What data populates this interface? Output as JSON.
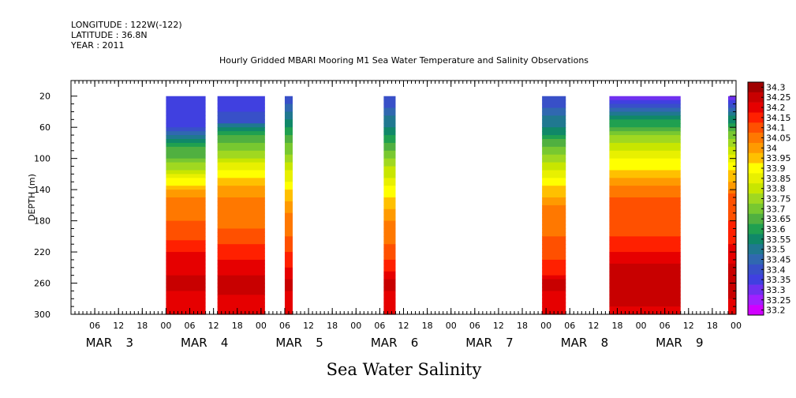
{
  "header": {
    "longitude": "LONGITUDE : 122W(-122)",
    "latitude": "LATITUDE : 36.8N",
    "year": "YEAR : 2011"
  },
  "footer_title": "Sea Water Salinity",
  "chart_data": {
    "type": "heatmap",
    "title": "Hourly Gridded MBARI Mooring M1 Sea Water Temperature and Salinity Observations",
    "ylabel": "DEPTH (m)",
    "xlabel": "",
    "ylim": [
      300,
      0
    ],
    "y_ticks": [
      20,
      60,
      100,
      140,
      180,
      220,
      260,
      300
    ],
    "x_range_hours": [
      0,
      168
    ],
    "x_ticks": [
      {
        "h": 6,
        "label": "06"
      },
      {
        "h": 12,
        "label": "12"
      },
      {
        "h": 18,
        "label": "18"
      },
      {
        "h": 24,
        "label": "00"
      },
      {
        "h": 30,
        "label": "06"
      },
      {
        "h": 36,
        "label": "12"
      },
      {
        "h": 42,
        "label": "18"
      },
      {
        "h": 48,
        "label": "00"
      },
      {
        "h": 54,
        "label": "06"
      },
      {
        "h": 60,
        "label": "12"
      },
      {
        "h": 66,
        "label": "18"
      },
      {
        "h": 72,
        "label": "00"
      },
      {
        "h": 78,
        "label": "06"
      },
      {
        "h": 84,
        "label": "12"
      },
      {
        "h": 90,
        "label": "18"
      },
      {
        "h": 96,
        "label": "00"
      },
      {
        "h": 102,
        "label": "06"
      },
      {
        "h": 108,
        "label": "12"
      },
      {
        "h": 114,
        "label": "18"
      },
      {
        "h": 120,
        "label": "00"
      },
      {
        "h": 126,
        "label": "06"
      },
      {
        "h": 132,
        "label": "12"
      },
      {
        "h": 138,
        "label": "18"
      },
      {
        "h": 144,
        "label": "00"
      },
      {
        "h": 150,
        "label": "06"
      },
      {
        "h": 156,
        "label": "12"
      },
      {
        "h": 162,
        "label": "18"
      },
      {
        "h": 168,
        "label": "00"
      }
    ],
    "day_labels": [
      {
        "h": 12,
        "month": "MAR",
        "day": "3"
      },
      {
        "h": 36,
        "month": "MAR",
        "day": "4"
      },
      {
        "h": 60,
        "month": "MAR",
        "day": "5"
      },
      {
        "h": 84,
        "month": "MAR",
        "day": "6"
      },
      {
        "h": 108,
        "month": "MAR",
        "day": "7"
      },
      {
        "h": 132,
        "month": "MAR",
        "day": "8"
      },
      {
        "h": 156,
        "month": "MAR",
        "day": "9"
      }
    ],
    "colorbar": {
      "levels": [
        34.3,
        34.25,
        34.2,
        34.15,
        34.1,
        34.05,
        34,
        33.95,
        33.9,
        33.85,
        33.8,
        33.75,
        33.7,
        33.65,
        33.6,
        33.55,
        33.5,
        33.45,
        33.4,
        33.35,
        33.3,
        33.25,
        33.2
      ],
      "labels": [
        "34.3",
        "34.25",
        "34.2",
        "34.15",
        "34.1",
        "34.05",
        "34",
        "33.95",
        "33.9",
        "33.85",
        "33.8",
        "33.75",
        "33.7",
        "33.65",
        "33.6",
        "33.55",
        "33.5",
        "33.45",
        "33.4",
        "33.35",
        "33.3",
        "33.25",
        "33.2"
      ],
      "colors": [
        "#a00000",
        "#c80000",
        "#e60000",
        "#ff2000",
        "#ff5000",
        "#ff7800",
        "#ff9a00",
        "#ffc000",
        "#ffff00",
        "#e8f000",
        "#c8e600",
        "#a0d820",
        "#78c830",
        "#50b040",
        "#20a050",
        "#108868",
        "#207890",
        "#3068b0",
        "#3850c8",
        "#4040e0",
        "#7030f0",
        "#a020ff",
        "#d000ff"
      ]
    },
    "data_columns": [
      {
        "start_h": 24,
        "end_h": 34,
        "profile": [
          [
            20,
            33.35
          ],
          [
            60,
            33.4
          ],
          [
            80,
            33.62
          ],
          [
            100,
            33.7
          ],
          [
            120,
            33.85
          ],
          [
            140,
            34.0
          ],
          [
            160,
            34.08
          ],
          [
            180,
            34.1
          ],
          [
            200,
            34.14
          ],
          [
            220,
            34.2
          ],
          [
            240,
            34.22
          ],
          [
            260,
            34.27
          ],
          [
            280,
            34.22
          ],
          [
            300,
            34.2
          ]
        ]
      },
      {
        "start_h": 37,
        "end_h": 49,
        "profile": [
          [
            20,
            33.35
          ],
          [
            50,
            33.42
          ],
          [
            70,
            33.65
          ],
          [
            90,
            33.75
          ],
          [
            110,
            33.88
          ],
          [
            130,
            33.98
          ],
          [
            150,
            34.05
          ],
          [
            180,
            34.08
          ],
          [
            200,
            34.13
          ],
          [
            220,
            34.18
          ],
          [
            240,
            34.23
          ],
          [
            260,
            34.28
          ],
          [
            280,
            34.24
          ],
          [
            300,
            34.2
          ]
        ]
      },
      {
        "start_h": 54,
        "end_h": 56,
        "profile": [
          [
            20,
            33.4
          ],
          [
            60,
            33.6
          ],
          [
            100,
            33.78
          ],
          [
            140,
            33.95
          ],
          [
            170,
            34.05
          ],
          [
            200,
            34.1
          ],
          [
            220,
            34.15
          ],
          [
            240,
            34.2
          ],
          [
            260,
            34.27
          ],
          [
            280,
            34.22
          ],
          [
            300,
            34.2
          ]
        ]
      },
      {
        "start_h": 79,
        "end_h": 82,
        "profile": [
          [
            20,
            33.4
          ],
          [
            60,
            33.55
          ],
          [
            100,
            33.75
          ],
          [
            140,
            33.92
          ],
          [
            180,
            34.05
          ],
          [
            220,
            34.12
          ],
          [
            240,
            34.18
          ],
          [
            260,
            34.27
          ],
          [
            280,
            34.22
          ],
          [
            300,
            34.2
          ]
        ]
      },
      {
        "start_h": 119,
        "end_h": 125,
        "profile": [
          [
            20,
            33.4
          ],
          [
            60,
            33.55
          ],
          [
            100,
            33.78
          ],
          [
            130,
            33.92
          ],
          [
            160,
            34.05
          ],
          [
            200,
            34.1
          ],
          [
            230,
            34.15
          ],
          [
            250,
            34.2
          ],
          [
            260,
            34.27
          ],
          [
            280,
            34.22
          ],
          [
            300,
            34.2
          ]
        ]
      },
      {
        "start_h": 136,
        "end_h": 154,
        "profile": [
          [
            20,
            33.3
          ],
          [
            40,
            33.5
          ],
          [
            70,
            33.75
          ],
          [
            100,
            33.9
          ],
          [
            120,
            33.97
          ],
          [
            140,
            34.08
          ],
          [
            160,
            34.13
          ],
          [
            200,
            34.15
          ],
          [
            220,
            34.2
          ],
          [
            240,
            34.26
          ],
          [
            260,
            34.3
          ],
          [
            280,
            34.27
          ],
          [
            300,
            34.22
          ]
        ]
      },
      {
        "start_h": 166,
        "end_h": 170,
        "profile": [
          [
            20,
            33.3
          ],
          [
            40,
            33.5
          ],
          [
            70,
            33.72
          ],
          [
            100,
            33.88
          ],
          [
            130,
            34.0
          ],
          [
            150,
            34.12
          ],
          [
            190,
            34.16
          ],
          [
            220,
            34.22
          ],
          [
            240,
            34.26
          ],
          [
            270,
            34.28
          ],
          [
            300,
            34.2
          ]
        ]
      }
    ]
  }
}
